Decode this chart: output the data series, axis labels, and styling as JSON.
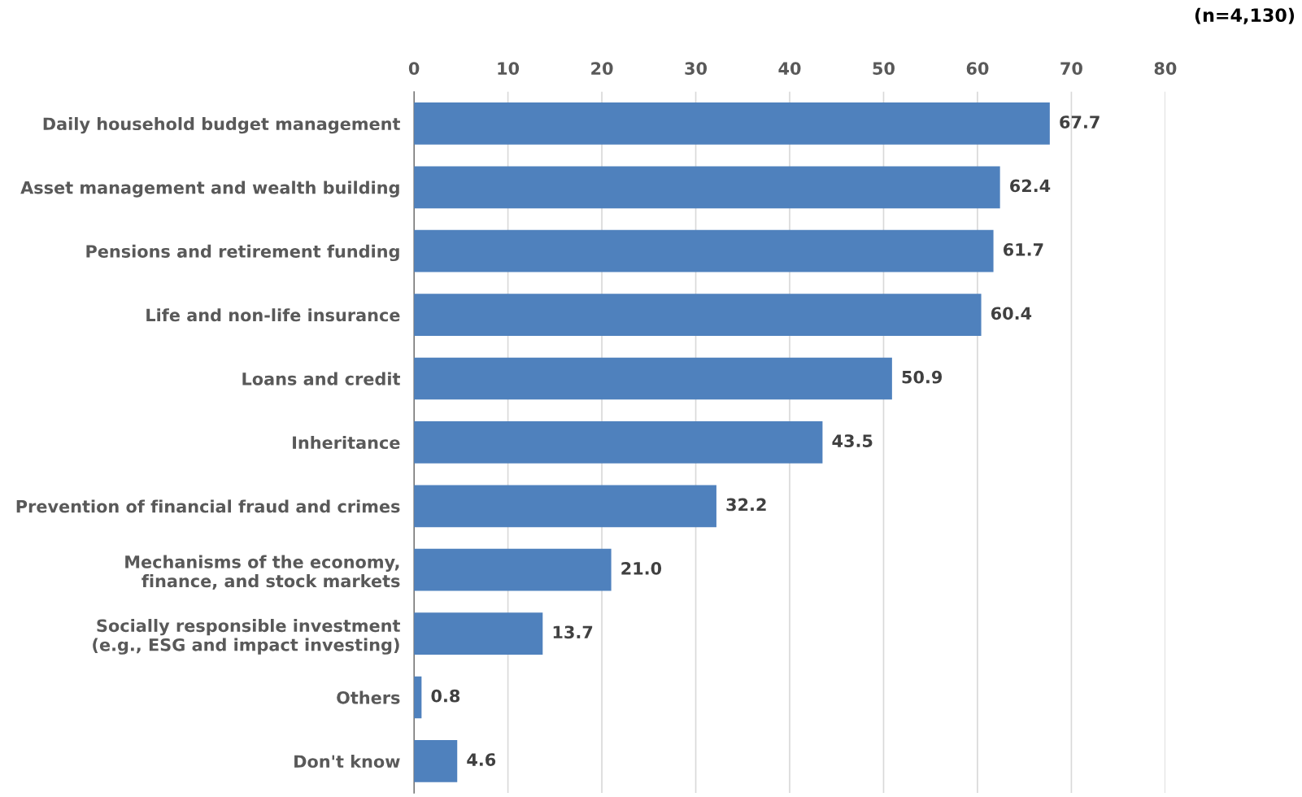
{
  "chart_data": {
    "type": "bar",
    "orientation": "horizontal",
    "categories": [
      "Daily household budget management",
      "Asset management and wealth building",
      "Pensions and retirement funding",
      "Life and non-life insurance",
      "Loans and credit",
      "Inheritance",
      "Prevention of financial fraud and crimes",
      "Mechanisms of the economy,\nfinance, and stock markets",
      "Socially responsible investment\n(e.g., ESG and impact investing)",
      "Others",
      "Don't know"
    ],
    "values": [
      67.7,
      62.4,
      61.7,
      60.4,
      50.9,
      43.5,
      32.2,
      21.0,
      13.7,
      0.8,
      4.6
    ],
    "value_labels": [
      "67.7",
      "62.4",
      "61.7",
      "60.4",
      "50.9",
      "43.5",
      "32.2",
      "21.0",
      "13.7",
      "0.8",
      "4.6"
    ],
    "color": "#4f81bd",
    "xlim": [
      0,
      80
    ],
    "xticks": [
      0,
      10,
      20,
      30,
      40,
      50,
      60,
      70,
      80
    ],
    "grid": "x",
    "legend": false,
    "annotations": [
      "(n=4,130)"
    ]
  }
}
